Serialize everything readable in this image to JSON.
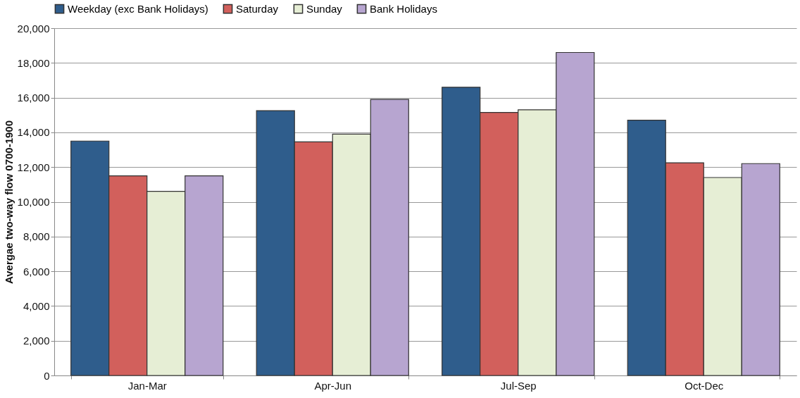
{
  "chart_data": {
    "type": "bar",
    "ylabel": "Avergae two-way flow 0700-1900",
    "categories": [
      "Jan-Mar",
      "Apr-Jun",
      "Jul-Sep",
      "Oct-Dec"
    ],
    "series": [
      {
        "name": "Weekday (exc Bank Holidays)",
        "color": "#2f5d8c",
        "values": [
          13500,
          15250,
          16600,
          14700
        ]
      },
      {
        "name": "Saturday",
        "color": "#d2605c",
        "values": [
          11500,
          13450,
          15150,
          12250
        ]
      },
      {
        "name": "Sunday",
        "color": "#e6eed5",
        "values": [
          10600,
          13900,
          15300,
          11400
        ]
      },
      {
        "name": "Bank Holidays",
        "color": "#b7a5d0",
        "values": [
          11500,
          15900,
          18600,
          12200
        ]
      }
    ],
    "ylim": [
      0,
      20000
    ],
    "yticks": [
      0,
      {
        "value": 2000,
        "label": "2,000"
      },
      {
        "value": 4000,
        "label": "4,000"
      },
      {
        "value": 6000,
        "label": "6,000"
      },
      {
        "value": 8000,
        "label": "8,000"
      },
      {
        "value": 10000,
        "label": "10,000"
      },
      {
        "value": 12000,
        "label": "12,000"
      },
      {
        "value": 14000,
        "label": "14,000"
      },
      {
        "value": 16000,
        "label": "16,000"
      },
      {
        "value": 18000,
        "label": "18,000"
      },
      {
        "value": 20000,
        "label": "20,000"
      }
    ],
    "grid": "y",
    "legend": "top"
  }
}
